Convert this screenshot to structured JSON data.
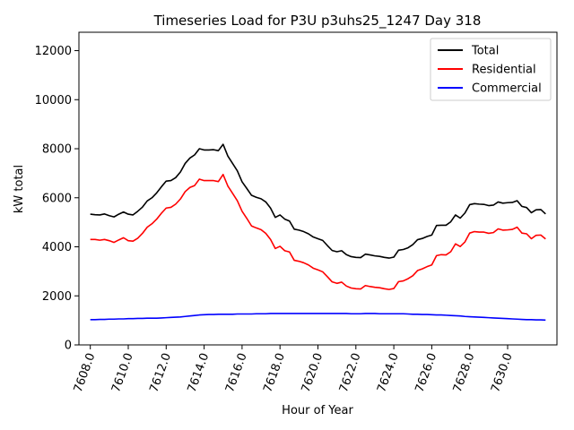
{
  "chart_data": {
    "type": "line",
    "title": "Timeseries Load for P3U p3uhs25_1247  Day 318",
    "xlabel": "Hour of Year",
    "ylabel": "kW total",
    "xlim": [
      7607.4,
      7632.6
    ],
    "ylim": [
      0,
      12750
    ],
    "x_ticks": [
      7608,
      7610,
      7612,
      7614,
      7616,
      7618,
      7620,
      7622,
      7624,
      7626,
      7628,
      7630
    ],
    "x_tick_labels": [
      "7608.0",
      "7610.0",
      "7612.0",
      "7614.0",
      "7616.0",
      "7618.0",
      "7620.0",
      "7622.0",
      "7624.0",
      "7626.0",
      "7628.0",
      "7630.0"
    ],
    "y_ticks": [
      0,
      2000,
      4000,
      6000,
      8000,
      10000,
      12000
    ],
    "y_tick_labels": [
      "0",
      "2000",
      "4000",
      "6000",
      "8000",
      "10000",
      "12000"
    ],
    "legend_position": "top-right",
    "x_start": 7608,
    "x_step": 0.25,
    "series": [
      {
        "name": "Total",
        "color": "#000000",
        "values": [
          5330,
          5310,
          5300,
          5340,
          5270,
          5220,
          5330,
          5420,
          5330,
          5300,
          5450,
          5620,
          5870,
          6000,
          6200,
          6450,
          6680,
          6700,
          6820,
          7050,
          7400,
          7620,
          7750,
          8000,
          7950,
          7950,
          7960,
          7920,
          8180,
          7700,
          7400,
          7100,
          6650,
          6380,
          6100,
          6020,
          5960,
          5830,
          5580,
          5200,
          5300,
          5130,
          5050,
          4720,
          4680,
          4620,
          4530,
          4400,
          4330,
          4260,
          4050,
          3850,
          3800,
          3840,
          3680,
          3600,
          3570,
          3560,
          3700,
          3670,
          3630,
          3610,
          3570,
          3540,
          3580,
          3860,
          3890,
          3960,
          4090,
          4290,
          4340,
          4420,
          4480,
          4870,
          4880,
          4880,
          5020,
          5300,
          5170,
          5380,
          5720,
          5760,
          5740,
          5730,
          5680,
          5700,
          5830,
          5780,
          5800,
          5810,
          5880,
          5650,
          5600,
          5390,
          5510,
          5520,
          5340
        ]
      },
      {
        "name": "Residential",
        "color": "#ff0000",
        "values": [
          4300,
          4300,
          4270,
          4300,
          4250,
          4180,
          4280,
          4370,
          4250,
          4230,
          4350,
          4550,
          4800,
          4940,
          5130,
          5370,
          5580,
          5610,
          5740,
          5950,
          6250,
          6420,
          6500,
          6760,
          6700,
          6700,
          6700,
          6660,
          6950,
          6480,
          6180,
          5880,
          5450,
          5160,
          4850,
          4770,
          4700,
          4550,
          4300,
          3930,
          4020,
          3840,
          3790,
          3450,
          3410,
          3350,
          3260,
          3130,
          3060,
          2980,
          2780,
          2570,
          2510,
          2560,
          2400,
          2320,
          2290,
          2280,
          2420,
          2380,
          2350,
          2330,
          2290,
          2260,
          2300,
          2580,
          2610,
          2700,
          2820,
          3030,
          3100,
          3190,
          3260,
          3640,
          3680,
          3670,
          3800,
          4120,
          4010,
          4200,
          4560,
          4620,
          4600,
          4600,
          4550,
          4580,
          4730,
          4680,
          4690,
          4710,
          4800,
          4560,
          4530,
          4330,
          4470,
          4480,
          4320
        ]
      },
      {
        "name": "Commercial",
        "color": "#0000ff",
        "values": [
          1030,
          1030,
          1040,
          1040,
          1050,
          1050,
          1060,
          1060,
          1070,
          1070,
          1080,
          1080,
          1090,
          1090,
          1090,
          1100,
          1110,
          1120,
          1130,
          1140,
          1160,
          1180,
          1200,
          1220,
          1230,
          1240,
          1240,
          1250,
          1250,
          1250,
          1250,
          1260,
          1260,
          1260,
          1260,
          1270,
          1270,
          1270,
          1280,
          1280,
          1280,
          1280,
          1280,
          1280,
          1280,
          1280,
          1280,
          1280,
          1280,
          1280,
          1280,
          1280,
          1280,
          1280,
          1280,
          1270,
          1270,
          1270,
          1280,
          1280,
          1280,
          1270,
          1270,
          1270,
          1270,
          1270,
          1270,
          1260,
          1250,
          1250,
          1240,
          1240,
          1230,
          1220,
          1220,
          1210,
          1200,
          1190,
          1180,
          1160,
          1150,
          1140,
          1130,
          1120,
          1110,
          1100,
          1090,
          1080,
          1070,
          1060,
          1050,
          1040,
          1030,
          1030,
          1020,
          1020,
          1010
        ]
      }
    ]
  }
}
